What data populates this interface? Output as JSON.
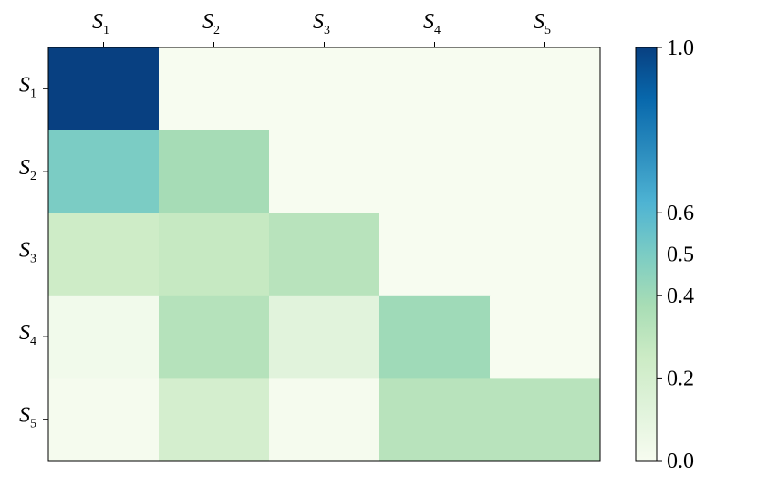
{
  "chart_data": {
    "type": "heatmap",
    "row_labels": [
      {
        "base": "S",
        "sub": "1"
      },
      {
        "base": "S",
        "sub": "2"
      },
      {
        "base": "S",
        "sub": "3"
      },
      {
        "base": "S",
        "sub": "4"
      },
      {
        "base": "S",
        "sub": "5"
      }
    ],
    "col_labels": [
      {
        "base": "S",
        "sub": "1"
      },
      {
        "base": "S",
        "sub": "2"
      },
      {
        "base": "S",
        "sub": "3"
      },
      {
        "base": "S",
        "sub": "4"
      },
      {
        "base": "S",
        "sub": "5"
      }
    ],
    "values": [
      [
        1.0,
        0.0,
        0.0,
        0.0,
        0.0
      ],
      [
        0.5,
        0.38,
        0.0,
        0.0,
        0.0
      ],
      [
        0.24,
        0.27,
        0.32,
        0.0,
        0.0
      ],
      [
        0.03,
        0.33,
        0.12,
        0.4,
        0.0
      ],
      [
        0.01,
        0.2,
        0.01,
        0.32,
        0.32
      ]
    ],
    "colorscale": "GnBu",
    "colorbar": {
      "range": [
        0.0,
        1.0
      ],
      "ticks": [
        {
          "value": 0.0,
          "label": "0.0"
        },
        {
          "value": 0.2,
          "label": "0.2"
        },
        {
          "value": 0.4,
          "label": "0.4"
        },
        {
          "value": 0.5,
          "label": "0.5"
        },
        {
          "value": 0.6,
          "label": "0.6"
        },
        {
          "value": 1.0,
          "label": "1.0"
        }
      ]
    },
    "x_axis_position": "top",
    "grid": false,
    "legend": "colorbar-right"
  }
}
